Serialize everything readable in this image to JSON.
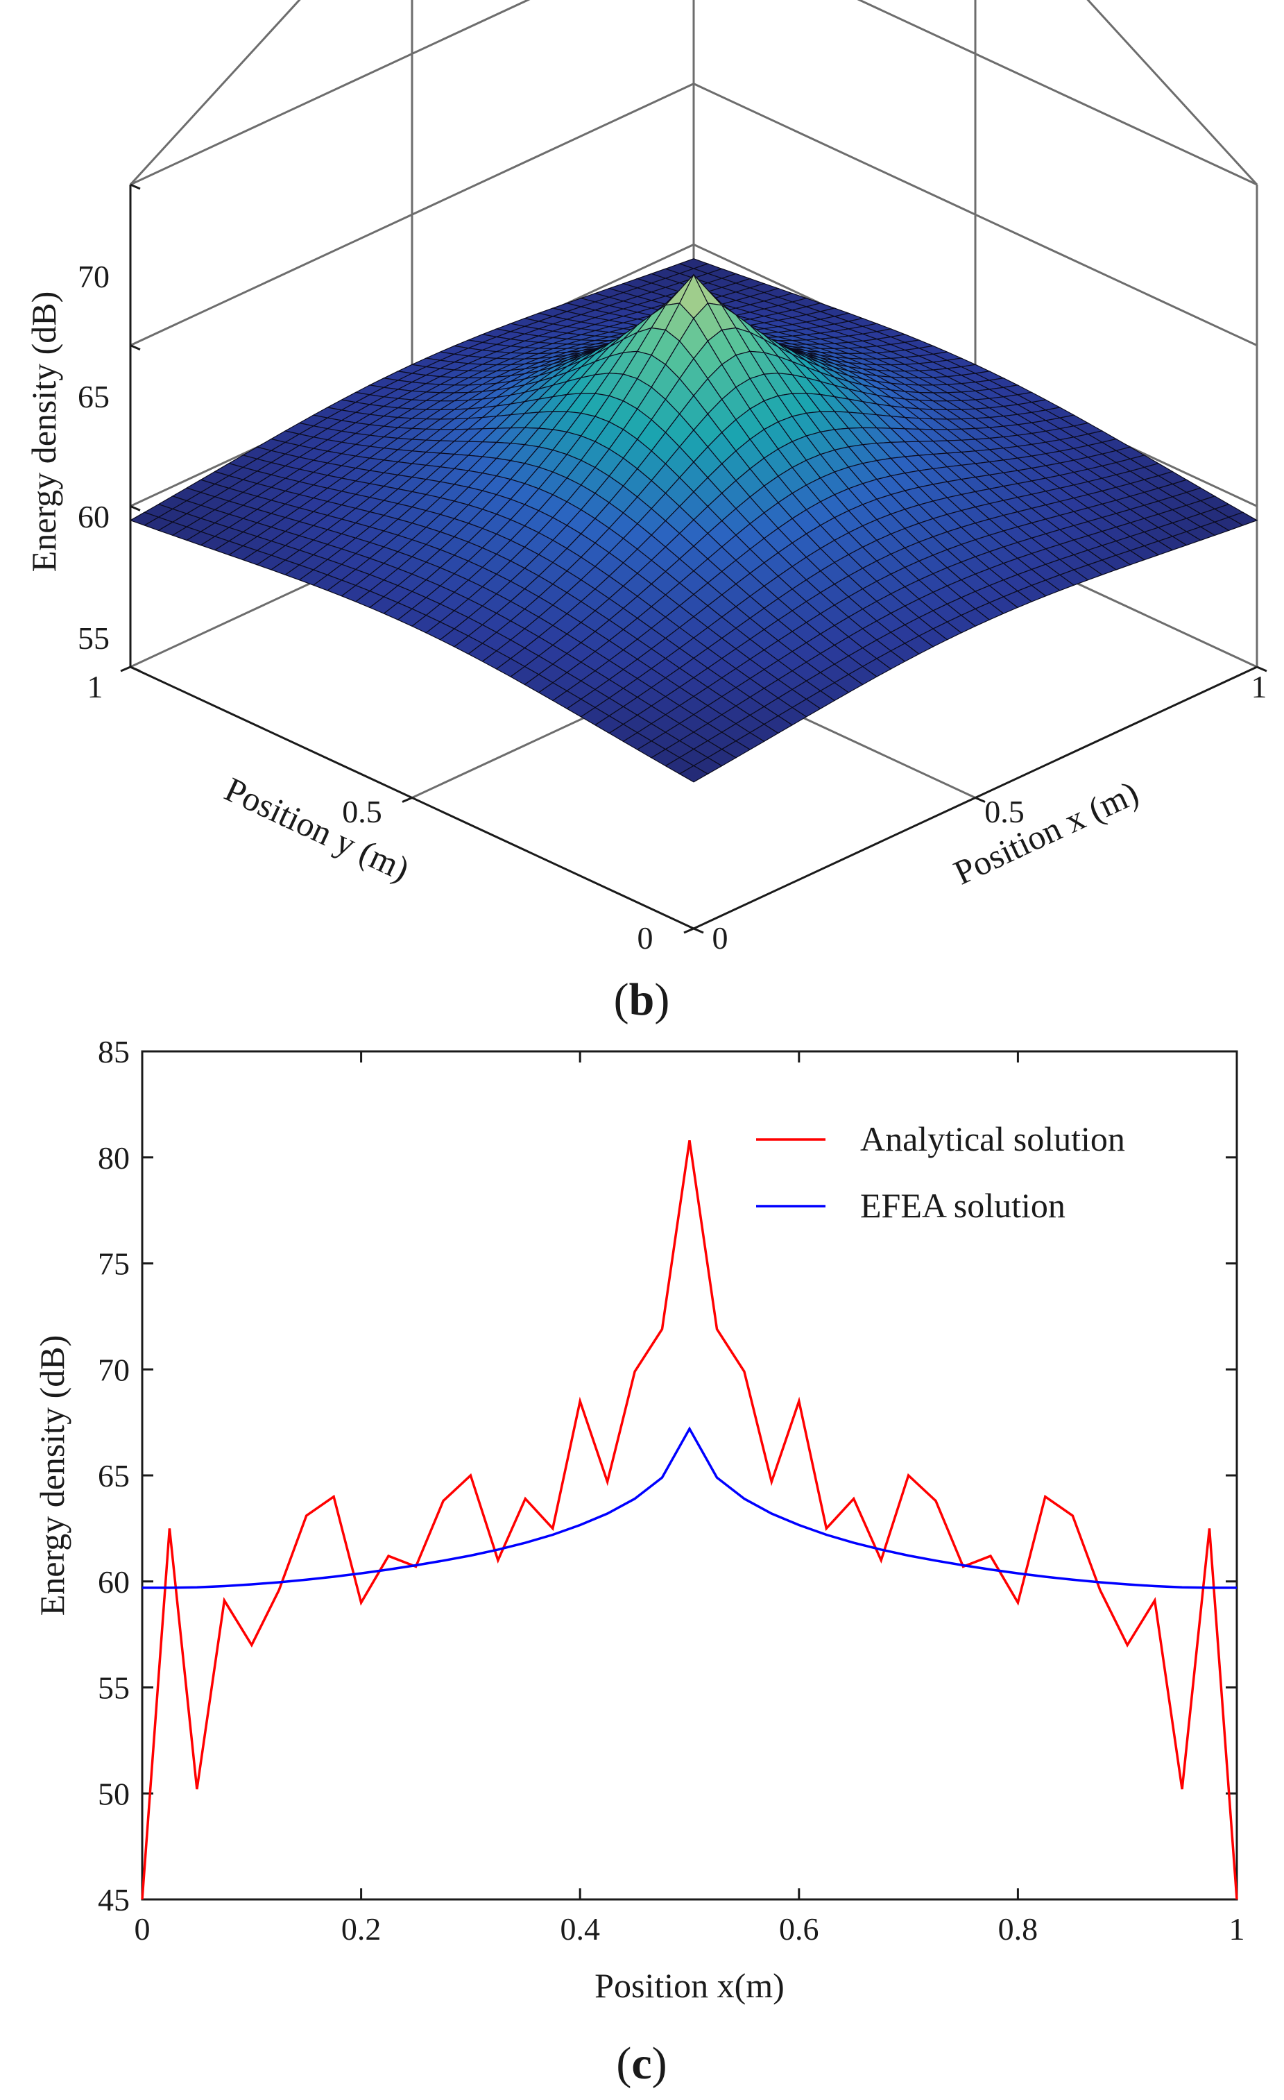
{
  "figure": {
    "panel_b_label": "b",
    "panel_c_label": "c"
  },
  "chart_data": [
    {
      "type": "surface",
      "panel": "b",
      "zlabel": "Energy density (dB)",
      "xlabel": "Position x (m)",
      "ylabel": "Position y (m)",
      "zlim": [
        55,
        70
      ],
      "zticks": [
        "55",
        "60",
        "65",
        "70"
      ],
      "xticks": [
        "0",
        "0.5",
        "1"
      ],
      "yticks": [
        "0",
        "0.5",
        "1"
      ],
      "grid": true,
      "peak": {
        "x": 0.5,
        "y": 0.5,
        "z": 67.2
      },
      "corner_value": 58.8,
      "mesh_divisions": 40,
      "colormap": [
        "#1e1d57",
        "#2a3a9a",
        "#2b63c0",
        "#1ba5b0",
        "#58c39a",
        "#c4d384"
      ]
    },
    {
      "type": "line",
      "panel": "c",
      "title": "",
      "xlabel": "Position x(m)",
      "ylabel": "Energy density (dB)",
      "xlim": [
        0,
        1
      ],
      "ylim": [
        45,
        85
      ],
      "xticks": [
        "0",
        "0.2",
        "0.4",
        "0.6",
        "0.8",
        "1"
      ],
      "yticks": [
        "45",
        "50",
        "55",
        "60",
        "65",
        "70",
        "75",
        "80",
        "85"
      ],
      "legend_position": "top-right",
      "series": [
        {
          "name": "Analytical solution",
          "color": "#ff0000",
          "x": [
            0,
            0.025,
            0.05,
            0.075,
            0.1,
            0.125,
            0.15,
            0.175,
            0.2,
            0.225,
            0.25,
            0.275,
            0.3,
            0.325,
            0.35,
            0.375,
            0.4,
            0.425,
            0.45,
            0.475,
            0.5,
            0.525,
            0.55,
            0.575,
            0.6,
            0.625,
            0.65,
            0.675,
            0.7,
            0.725,
            0.75,
            0.775,
            0.8,
            0.825,
            0.85,
            0.875,
            0.9,
            0.925,
            0.95,
            0.975,
            1
          ],
          "y": [
            45.0,
            62.5,
            50.2,
            59.1,
            57.0,
            59.6,
            63.1,
            64.0,
            59.0,
            61.2,
            60.7,
            63.8,
            65.0,
            61.0,
            63.9,
            62.5,
            68.5,
            64.7,
            69.9,
            71.9,
            80.8,
            71.9,
            69.9,
            64.7,
            68.5,
            62.5,
            63.9,
            61.0,
            65.0,
            63.8,
            60.7,
            61.2,
            59.0,
            64.0,
            63.1,
            59.6,
            57.0,
            59.1,
            50.2,
            62.5,
            45.0
          ]
        },
        {
          "name": "EFEA solution",
          "color": "#0000ff",
          "x": [
            0,
            0.025,
            0.05,
            0.075,
            0.1,
            0.125,
            0.15,
            0.175,
            0.2,
            0.225,
            0.25,
            0.275,
            0.3,
            0.325,
            0.35,
            0.375,
            0.4,
            0.425,
            0.45,
            0.475,
            0.5,
            0.525,
            0.55,
            0.575,
            0.6,
            0.625,
            0.65,
            0.675,
            0.7,
            0.725,
            0.75,
            0.775,
            0.8,
            0.825,
            0.85,
            0.875,
            0.9,
            0.925,
            0.95,
            0.975,
            1
          ],
          "y": [
            59.7,
            59.7,
            59.72,
            59.78,
            59.86,
            59.96,
            60.08,
            60.22,
            60.38,
            60.56,
            60.76,
            60.98,
            61.22,
            61.5,
            61.82,
            62.2,
            62.66,
            63.2,
            63.9,
            64.9,
            67.2,
            64.9,
            63.9,
            63.2,
            62.66,
            62.2,
            61.82,
            61.5,
            61.22,
            60.98,
            60.76,
            60.56,
            60.38,
            60.22,
            60.08,
            59.96,
            59.86,
            59.78,
            59.72,
            59.7,
            59.7
          ]
        }
      ]
    }
  ]
}
